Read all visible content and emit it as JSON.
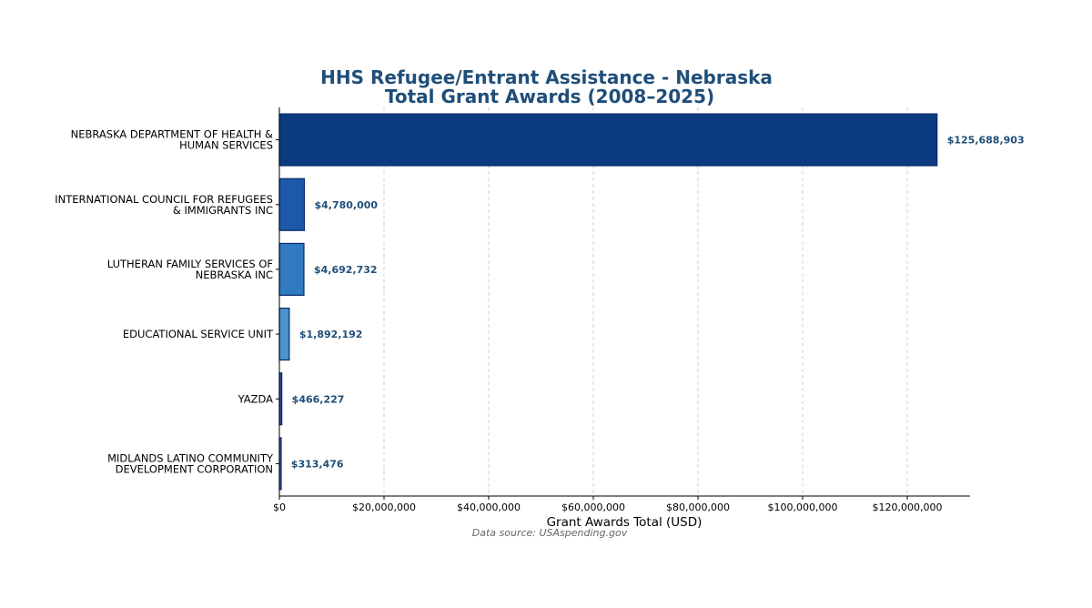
{
  "colors": {
    "title": "#1f4e79",
    "value_label": "#1f4e79",
    "bar_edge": "#0a2a6b",
    "bar_fills": [
      "#0d3b80",
      "#1a5aa8",
      "#2f7ac0",
      "#4a92d0",
      "#2a4a9a",
      "#4a5ea8"
    ],
    "grid": "#c8c8c8"
  },
  "chart_data": {
    "type": "bar",
    "orientation": "horizontal",
    "title_lines": [
      "HHS Refugee/Entrant Assistance - Nebraska",
      "Total Grant Awards (2008–2025)"
    ],
    "categories": [
      [
        "NEBRASKA DEPARTMENT OF HEALTH &",
        "HUMAN SERVICES"
      ],
      [
        "INTERNATIONAL COUNCIL FOR REFUGEES",
        "& IMMIGRANTS INC"
      ],
      [
        "LUTHERAN FAMILY SERVICES OF",
        "NEBRASKA INC"
      ],
      [
        "EDUCATIONAL SERVICE UNIT"
      ],
      [
        "YAZDA"
      ],
      [
        "MIDLANDS LATINO COMMUNITY",
        "DEVELOPMENT CORPORATION"
      ]
    ],
    "values": [
      125688903,
      4780000,
      4692732,
      1892192,
      466227,
      313476
    ],
    "value_labels": [
      "$125,688,903",
      "$4,780,000",
      "$4,692,732",
      "$1,892,192",
      "$466,227",
      "$313,476"
    ],
    "xlabel": "Grant Awards Total (USD)",
    "xlim": [
      0,
      132000000
    ],
    "xticks": [
      0,
      20000000,
      40000000,
      60000000,
      80000000,
      100000000,
      120000000
    ],
    "xtick_labels": [
      "$0",
      "$20,000,000",
      "$40,000,000",
      "$60,000,000",
      "$80,000,000",
      "$100,000,000",
      "$120,000,000"
    ],
    "grid": "x-dashed",
    "source_note": "Data source: USAspending.gov"
  }
}
